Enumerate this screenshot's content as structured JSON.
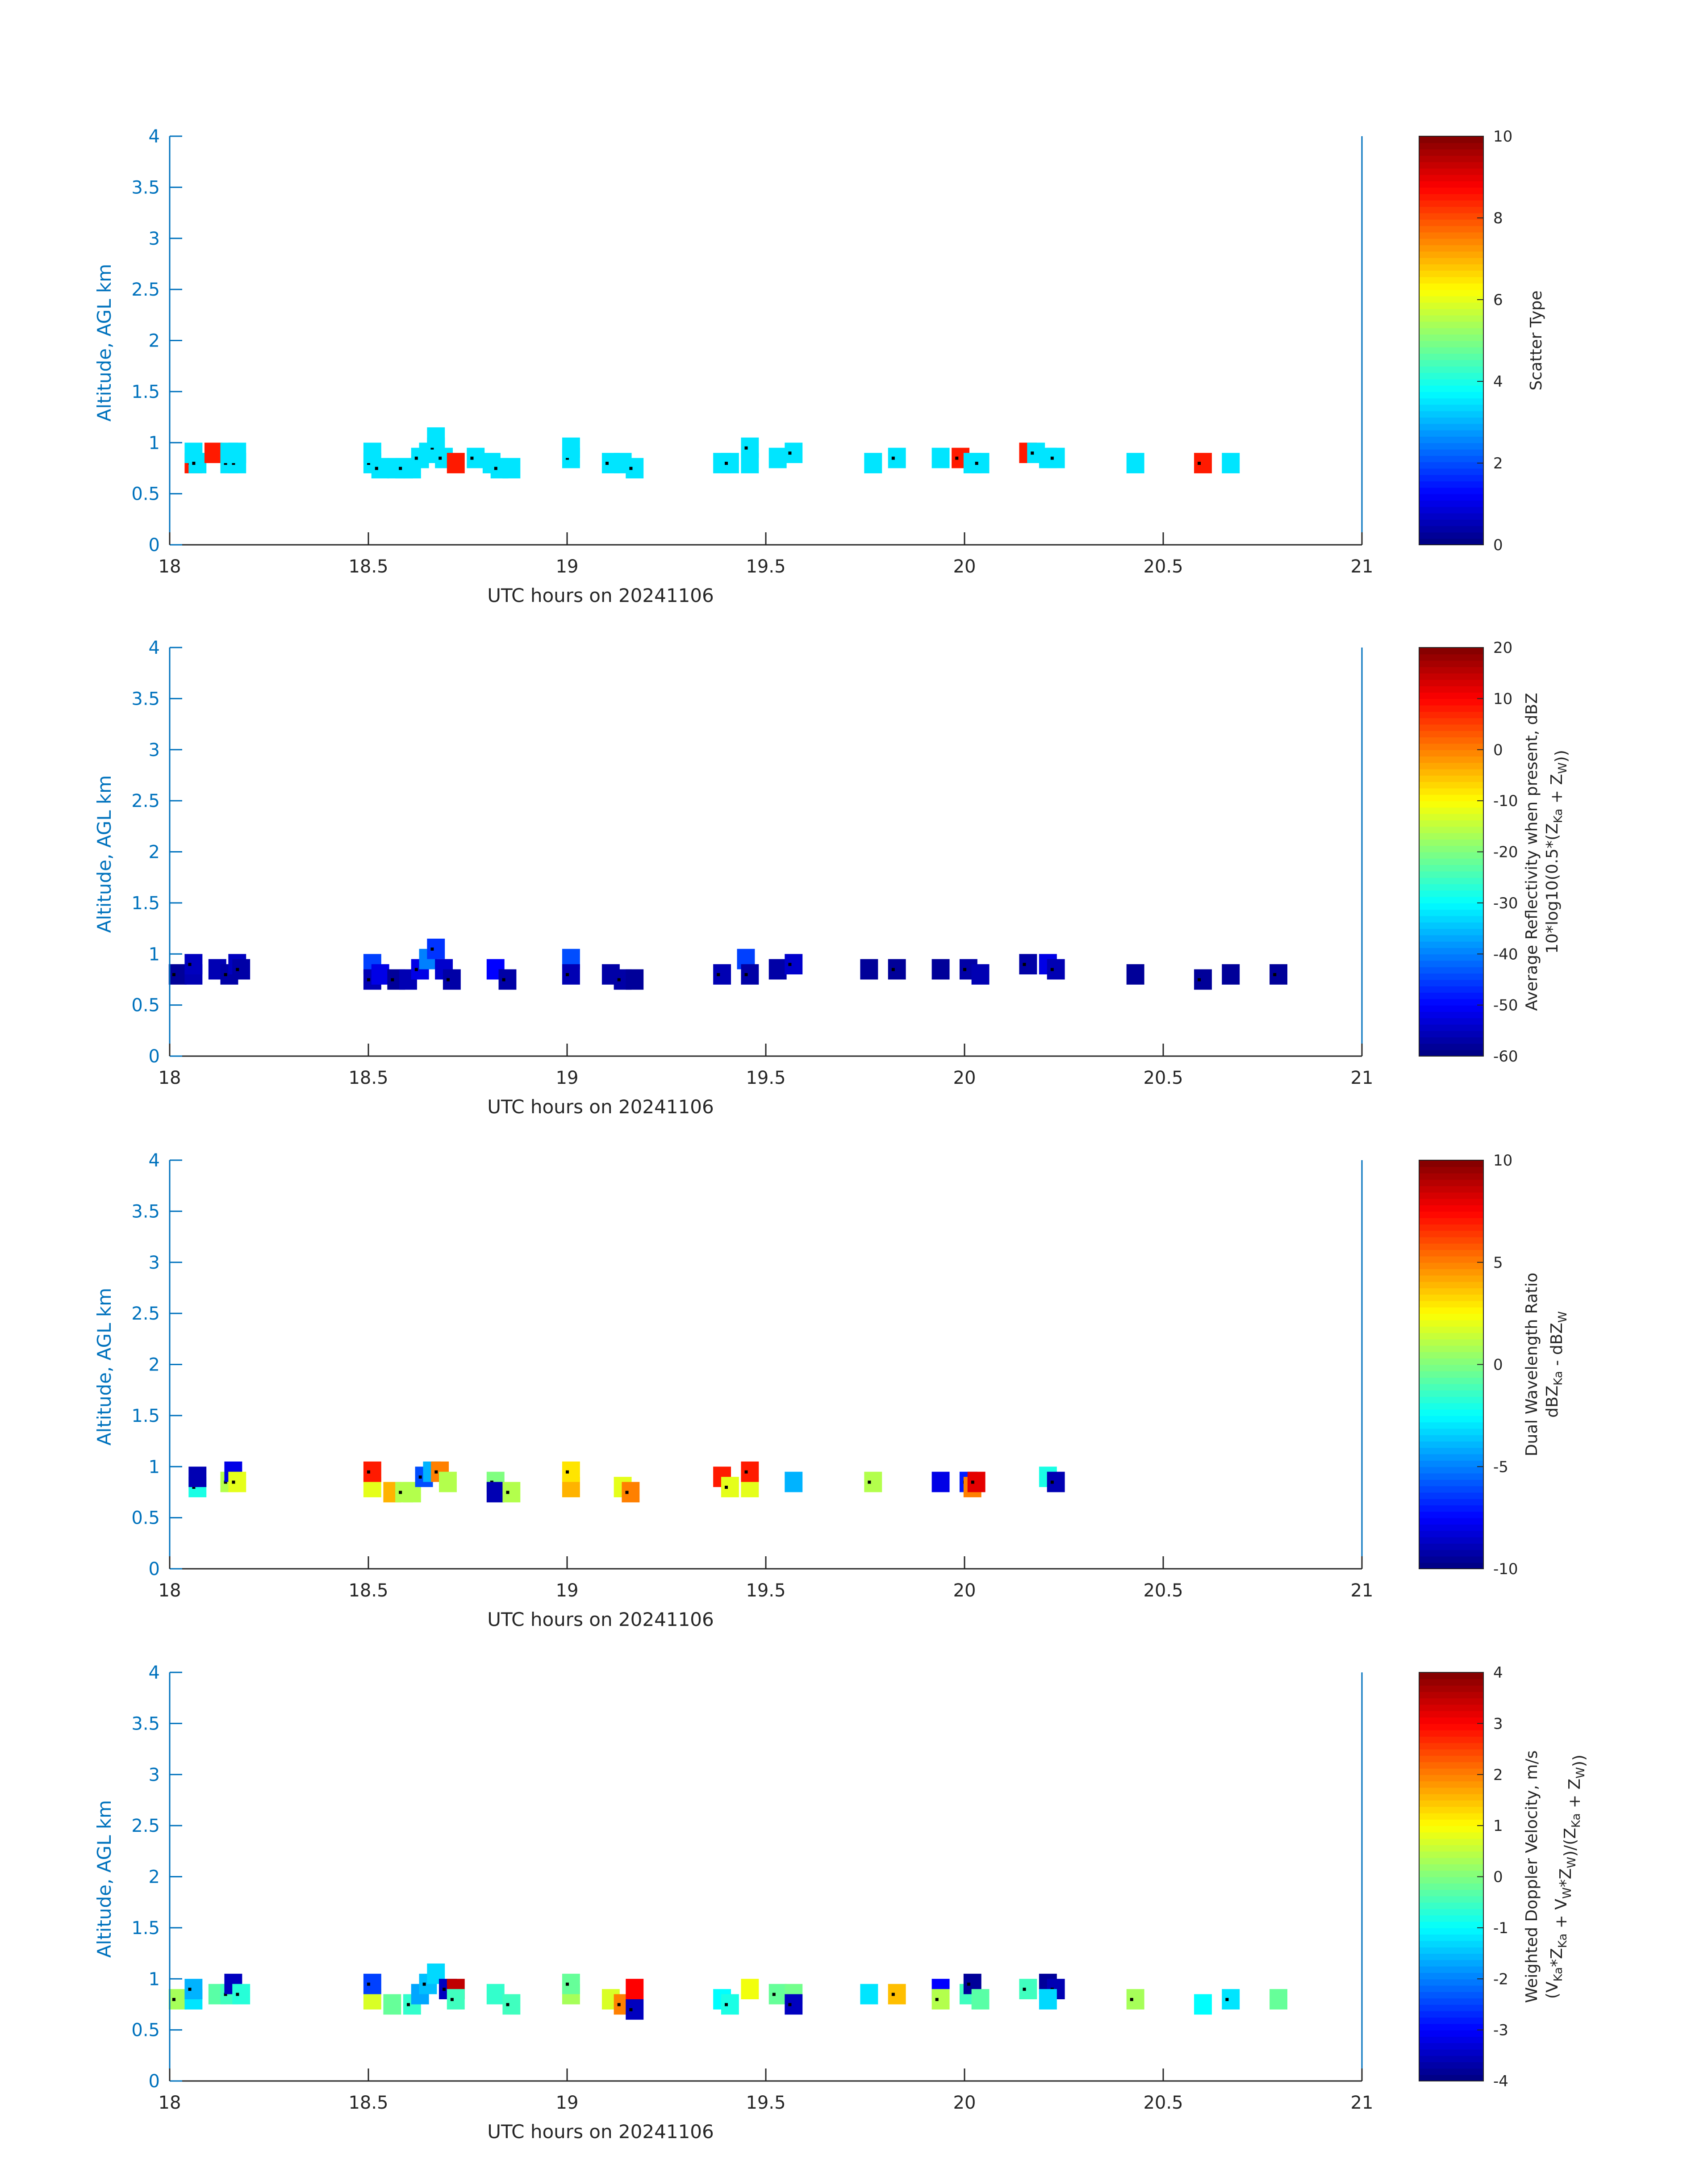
{
  "chart_data": [
    {
      "type": "heatmap",
      "xlabel": "UTC hours on 20241106",
      "ylabel": "Altitude, AGL km",
      "xlim": [
        18,
        21
      ],
      "ylim": [
        0,
        4
      ],
      "xticks": [
        "18",
        "18.5",
        "19",
        "19.5",
        "20",
        "20.5",
        "21"
      ],
      "yticks": [
        "0",
        "0.5",
        "1",
        "1.5",
        "2",
        "2.5",
        "3",
        "3.5",
        "4"
      ],
      "colorbar": {
        "label": "Scatter Type",
        "clim": [
          0,
          10
        ],
        "ticks": [
          "0",
          "2",
          "4",
          "6",
          "8",
          "10"
        ]
      },
      "cells": [
        [
          18.05,
          0.8,
          8.5
        ],
        [
          18.05,
          0.9,
          3.5
        ],
        [
          18.06,
          0.8,
          3.5
        ],
        [
          18.1,
          0.9,
          8.5
        ],
        [
          18.14,
          0.8,
          3.5
        ],
        [
          18.14,
          0.9,
          3.5
        ],
        [
          18.16,
          0.8,
          3.5
        ],
        [
          18.16,
          0.9,
          3.5
        ],
        [
          18.5,
          0.8,
          3.5
        ],
        [
          18.5,
          0.9,
          3.5
        ],
        [
          18.52,
          0.75,
          3.5
        ],
        [
          18.56,
          0.75,
          3.5
        ],
        [
          18.58,
          0.75,
          3.5
        ],
        [
          18.6,
          0.75,
          3.5
        ],
        [
          18.62,
          0.85,
          3.5
        ],
        [
          18.64,
          0.9,
          3.5
        ],
        [
          18.66,
          0.95,
          3.5
        ],
        [
          18.66,
          1.05,
          3.5
        ],
        [
          18.68,
          0.85,
          3.5
        ],
        [
          18.71,
          0.8,
          8.5
        ],
        [
          18.76,
          0.85,
          3.5
        ],
        [
          18.8,
          0.8,
          3.5
        ],
        [
          18.82,
          0.75,
          3.5
        ],
        [
          18.85,
          0.75,
          3.5
        ],
        [
          19.0,
          0.85,
          3.5
        ],
        [
          19.0,
          0.95,
          3.5
        ],
        [
          19.1,
          0.8,
          3.5
        ],
        [
          19.13,
          0.8,
          3.5
        ],
        [
          19.16,
          0.75,
          3.5
        ],
        [
          19.38,
          0.8,
          3.5
        ],
        [
          19.4,
          0.8,
          3.5
        ],
        [
          19.45,
          0.8,
          3.5
        ],
        [
          19.45,
          0.95,
          3.5
        ],
        [
          19.52,
          0.85,
          3.5
        ],
        [
          19.56,
          0.9,
          3.5
        ],
        [
          19.76,
          0.8,
          3.5
        ],
        [
          19.82,
          0.85,
          3.5
        ],
        [
          19.93,
          0.85,
          3.5
        ],
        [
          19.98,
          0.85,
          8.5
        ],
        [
          20.01,
          0.8,
          3.5
        ],
        [
          20.03,
          0.8,
          3.5
        ],
        [
          20.15,
          0.9,
          8.5
        ],
        [
          20.17,
          0.9,
          3.5
        ],
        [
          20.2,
          0.85,
          3.5
        ],
        [
          20.22,
          0.85,
          3.5
        ],
        [
          20.42,
          0.8,
          3.5
        ],
        [
          20.59,
          0.8,
          8.5
        ],
        [
          20.66,
          0.8,
          3.5
        ]
      ]
    },
    {
      "type": "heatmap",
      "xlabel": "UTC hours on 20241106",
      "ylabel": "Altitude, AGL km",
      "xlim": [
        18,
        21
      ],
      "ylim": [
        0,
        4
      ],
      "xticks": [
        "18",
        "18.5",
        "19",
        "19.5",
        "20",
        "20.5",
        "21"
      ],
      "yticks": [
        "0",
        "0.5",
        "1",
        "1.5",
        "2",
        "2.5",
        "3",
        "3.5",
        "4"
      ],
      "colorbar": {
        "label": "Average Reflectivity when present, dBZ",
        "label2": "10*log10(0.5*(Z",
        "label2_sub1": "Ka",
        "label2_mid": " + Z",
        "label2_sub2": "W",
        "label2_end": "))",
        "clim": [
          -60,
          20
        ],
        "ticks": [
          "-60",
          "-50",
          "-40",
          "-30",
          "-20",
          "-10",
          "0",
          "10",
          "20"
        ]
      },
      "cells": [
        [
          18.01,
          0.8,
          -58
        ],
        [
          18.05,
          0.8,
          -56
        ],
        [
          18.05,
          0.9,
          -55
        ],
        [
          18.11,
          0.85,
          -56
        ],
        [
          18.14,
          0.8,
          -57
        ],
        [
          18.16,
          0.9,
          -55
        ],
        [
          18.17,
          0.85,
          -57
        ],
        [
          18.5,
          0.9,
          -45
        ],
        [
          18.5,
          0.75,
          -56
        ],
        [
          18.52,
          0.8,
          -52
        ],
        [
          18.56,
          0.75,
          -58
        ],
        [
          18.59,
          0.75,
          -56
        ],
        [
          18.62,
          0.85,
          -52
        ],
        [
          18.64,
          0.95,
          -40
        ],
        [
          18.66,
          1.05,
          -46
        ],
        [
          18.68,
          0.85,
          -54
        ],
        [
          18.7,
          0.75,
          -57
        ],
        [
          18.81,
          0.85,
          -50
        ],
        [
          18.84,
          0.75,
          -57
        ],
        [
          19.0,
          0.95,
          -44
        ],
        [
          19.0,
          0.8,
          -56
        ],
        [
          19.1,
          0.8,
          -57
        ],
        [
          19.13,
          0.75,
          -57
        ],
        [
          19.16,
          0.75,
          -58
        ],
        [
          19.38,
          0.8,
          -56
        ],
        [
          19.44,
          0.95,
          -45
        ],
        [
          19.45,
          0.8,
          -57
        ],
        [
          19.52,
          0.85,
          -57
        ],
        [
          19.56,
          0.9,
          -54
        ],
        [
          19.75,
          0.85,
          -58
        ],
        [
          19.82,
          0.85,
          -58
        ],
        [
          19.93,
          0.85,
          -58
        ],
        [
          20.0,
          0.85,
          -57
        ],
        [
          20.03,
          0.8,
          -56
        ],
        [
          20.15,
          0.9,
          -57
        ],
        [
          20.2,
          0.9,
          -52
        ],
        [
          20.22,
          0.85,
          -56
        ],
        [
          20.42,
          0.8,
          -58
        ],
        [
          20.59,
          0.75,
          -58
        ],
        [
          20.66,
          0.8,
          -58
        ],
        [
          20.78,
          0.8,
          -58
        ]
      ]
    },
    {
      "type": "heatmap",
      "xlabel": "UTC hours on 20241106",
      "ylabel": "Altitude, AGL km",
      "xlim": [
        18,
        21
      ],
      "ylim": [
        0,
        4
      ],
      "xticks": [
        "18",
        "18.5",
        "19",
        "19.5",
        "20",
        "20.5",
        "21"
      ],
      "yticks": [
        "0",
        "0.5",
        "1",
        "1.5",
        "2",
        "2.5",
        "3",
        "3.5",
        "4"
      ],
      "colorbar": {
        "label": "Dual Wavelength Ratio",
        "label2": "dBZ",
        "label2_sub1": "Ka",
        "label2_mid": " - dBZ",
        "label2_sub2": "W",
        "label2_end": "",
        "clim": [
          -10,
          10
        ],
        "ticks": [
          "-10",
          "-5",
          "0",
          "5",
          "10"
        ]
      },
      "cells": [
        [
          18.06,
          0.8,
          -2
        ],
        [
          18.06,
          0.9,
          -9
        ],
        [
          18.14,
          0.85,
          1
        ],
        [
          18.15,
          0.95,
          -8
        ],
        [
          18.16,
          0.85,
          2
        ],
        [
          18.5,
          0.8,
          2
        ],
        [
          18.5,
          0.95,
          7
        ],
        [
          18.55,
          0.75,
          4
        ],
        [
          18.58,
          0.75,
          1
        ],
        [
          18.6,
          0.75,
          1
        ],
        [
          18.63,
          0.9,
          -6
        ],
        [
          18.65,
          0.95,
          -4
        ],
        [
          18.67,
          0.95,
          5
        ],
        [
          18.69,
          0.85,
          1
        ],
        [
          18.81,
          0.85,
          0
        ],
        [
          18.81,
          0.75,
          -9
        ],
        [
          18.85,
          0.75,
          1
        ],
        [
          19.0,
          0.8,
          4
        ],
        [
          19.0,
          0.95,
          3
        ],
        [
          19.13,
          0.8,
          2
        ],
        [
          19.15,
          0.75,
          5
        ],
        [
          19.38,
          0.9,
          7
        ],
        [
          19.4,
          0.8,
          2
        ],
        [
          19.45,
          0.8,
          2
        ],
        [
          19.45,
          0.95,
          7
        ],
        [
          19.56,
          0.85,
          -4
        ],
        [
          19.76,
          0.85,
          1
        ],
        [
          19.93,
          0.85,
          -8
        ],
        [
          20.0,
          0.85,
          -7
        ],
        [
          20.01,
          0.8,
          5
        ],
        [
          20.02,
          0.85,
          8
        ],
        [
          20.2,
          0.9,
          -2
        ],
        [
          20.22,
          0.85,
          -9
        ]
      ]
    },
    {
      "type": "heatmap",
      "xlabel": "UTC hours on 20241106",
      "ylabel": "Altitude, AGL km",
      "xlim": [
        18,
        21
      ],
      "ylim": [
        0,
        4
      ],
      "xticks": [
        "18",
        "18.5",
        "19",
        "19.5",
        "20",
        "20.5",
        "21"
      ],
      "yticks": [
        "0",
        "0.5",
        "1",
        "1.5",
        "2",
        "2.5",
        "3",
        "3.5",
        "4"
      ],
      "colorbar": {
        "label": "Weighted Doppler Velocity, m/s",
        "label2": "(V",
        "label2_sub1": "Ka",
        "label2_mid": "*Z",
        "label2_sub2": "Ka",
        "label2_end": " + V",
        "label2_sub3": "W",
        "label2_end2": "*Z",
        "label2_sub4": "W",
        "label2_end3": ")/(Z",
        "label2_sub5": "Ka",
        "label2_end4": " + Z",
        "label2_sub6": "W",
        "label2_end5": "))",
        "clim": [
          -4,
          4
        ],
        "ticks": [
          "-4",
          "-3",
          "-2",
          "-1",
          "0",
          "1",
          "2",
          "3",
          "4"
        ]
      },
      "cells": [
        [
          18.01,
          0.8,
          0.3
        ],
        [
          18.05,
          0.8,
          -1.2
        ],
        [
          18.05,
          0.9,
          -1.6
        ],
        [
          18.11,
          0.85,
          -0.3
        ],
        [
          18.14,
          0.85,
          -0.5
        ],
        [
          18.15,
          0.95,
          -3.5
        ],
        [
          18.17,
          0.85,
          -0.7
        ],
        [
          18.5,
          0.8,
          0.7
        ],
        [
          18.5,
          0.95,
          -2.5
        ],
        [
          18.55,
          0.75,
          -0.2
        ],
        [
          18.6,
          0.75,
          -0.6
        ],
        [
          18.62,
          0.85,
          -1.7
        ],
        [
          18.64,
          0.95,
          -1.5
        ],
        [
          18.66,
          1.05,
          -1.3
        ],
        [
          18.69,
          0.9,
          -3.5
        ],
        [
          18.71,
          0.9,
          3.5
        ],
        [
          18.71,
          0.8,
          -0.5
        ],
        [
          18.81,
          0.85,
          -0.6
        ],
        [
          18.85,
          0.75,
          -0.5
        ],
        [
          19.0,
          0.85,
          0.3
        ],
        [
          19.0,
          0.95,
          -0.2
        ],
        [
          19.1,
          0.8,
          0.7
        ],
        [
          19.13,
          0.75,
          2
        ],
        [
          19.16,
          0.9,
          3
        ],
        [
          19.16,
          0.7,
          -3.5
        ],
        [
          19.38,
          0.8,
          -1
        ],
        [
          19.4,
          0.75,
          -0.8
        ],
        [
          19.45,
          0.9,
          0.9
        ],
        [
          19.52,
          0.85,
          -0.2
        ],
        [
          19.56,
          0.85,
          -0.1
        ],
        [
          19.56,
          0.75,
          -3.5
        ],
        [
          19.75,
          0.85,
          -1.2
        ],
        [
          19.82,
          0.85,
          1.5
        ],
        [
          19.93,
          0.9,
          -3
        ],
        [
          19.93,
          0.8,
          0.4
        ],
        [
          20.0,
          0.85,
          -0.5
        ],
        [
          20.01,
          0.95,
          -3.8
        ],
        [
          20.03,
          0.8,
          -0.3
        ],
        [
          20.15,
          0.9,
          -0.5
        ],
        [
          20.2,
          0.95,
          -3.8
        ],
        [
          20.22,
          0.9,
          -3.6
        ],
        [
          20.2,
          0.8,
          -1.3
        ],
        [
          20.42,
          0.8,
          0.3
        ],
        [
          20.59,
          0.75,
          -1
        ],
        [
          20.66,
          0.8,
          -1.2
        ],
        [
          20.78,
          0.8,
          -0.2
        ]
      ]
    }
  ]
}
